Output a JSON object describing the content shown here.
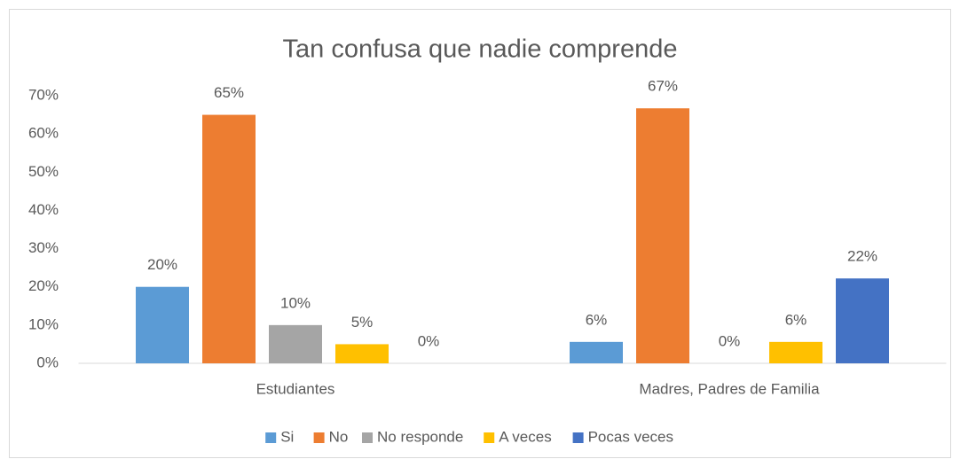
{
  "chart_data": {
    "type": "bar",
    "title": "Tan confusa que nadie comprende",
    "categories": [
      "Estudiantes",
      "Madres, Padres de Familia"
    ],
    "series": [
      {
        "name": "Si",
        "color": "#5b9bd5",
        "values": [
          20,
          5.6
        ],
        "value_labels": [
          "20%",
          "6%"
        ]
      },
      {
        "name": "No",
        "color": "#ed7d31",
        "values": [
          65,
          66.7
        ],
        "value_labels": [
          "65%",
          "67%"
        ]
      },
      {
        "name": "No responde",
        "color": "#a5a5a5",
        "values": [
          10,
          0
        ],
        "value_labels": [
          "10%",
          "0%"
        ]
      },
      {
        "name": "A veces",
        "color": "#ffc000",
        "values": [
          5,
          5.6
        ],
        "value_labels": [
          "5%",
          "6%"
        ]
      },
      {
        "name": "Pocas veces",
        "color": "#4472c4",
        "values": [
          0,
          22.2
        ],
        "value_labels": [
          "0%",
          "22%"
        ]
      }
    ],
    "ylim": [
      0,
      70
    ],
    "yticks": [
      {
        "value": 0,
        "label": "0%"
      },
      {
        "value": 10,
        "label": "10%"
      },
      {
        "value": 20,
        "label": "20%"
      },
      {
        "value": 30,
        "label": "30%"
      },
      {
        "value": 40,
        "label": "40%"
      },
      {
        "value": 50,
        "label": "50%"
      },
      {
        "value": 60,
        "label": "60%"
      },
      {
        "value": 70,
        "label": "70%"
      }
    ],
    "grid": false,
    "legend": "bottom"
  }
}
